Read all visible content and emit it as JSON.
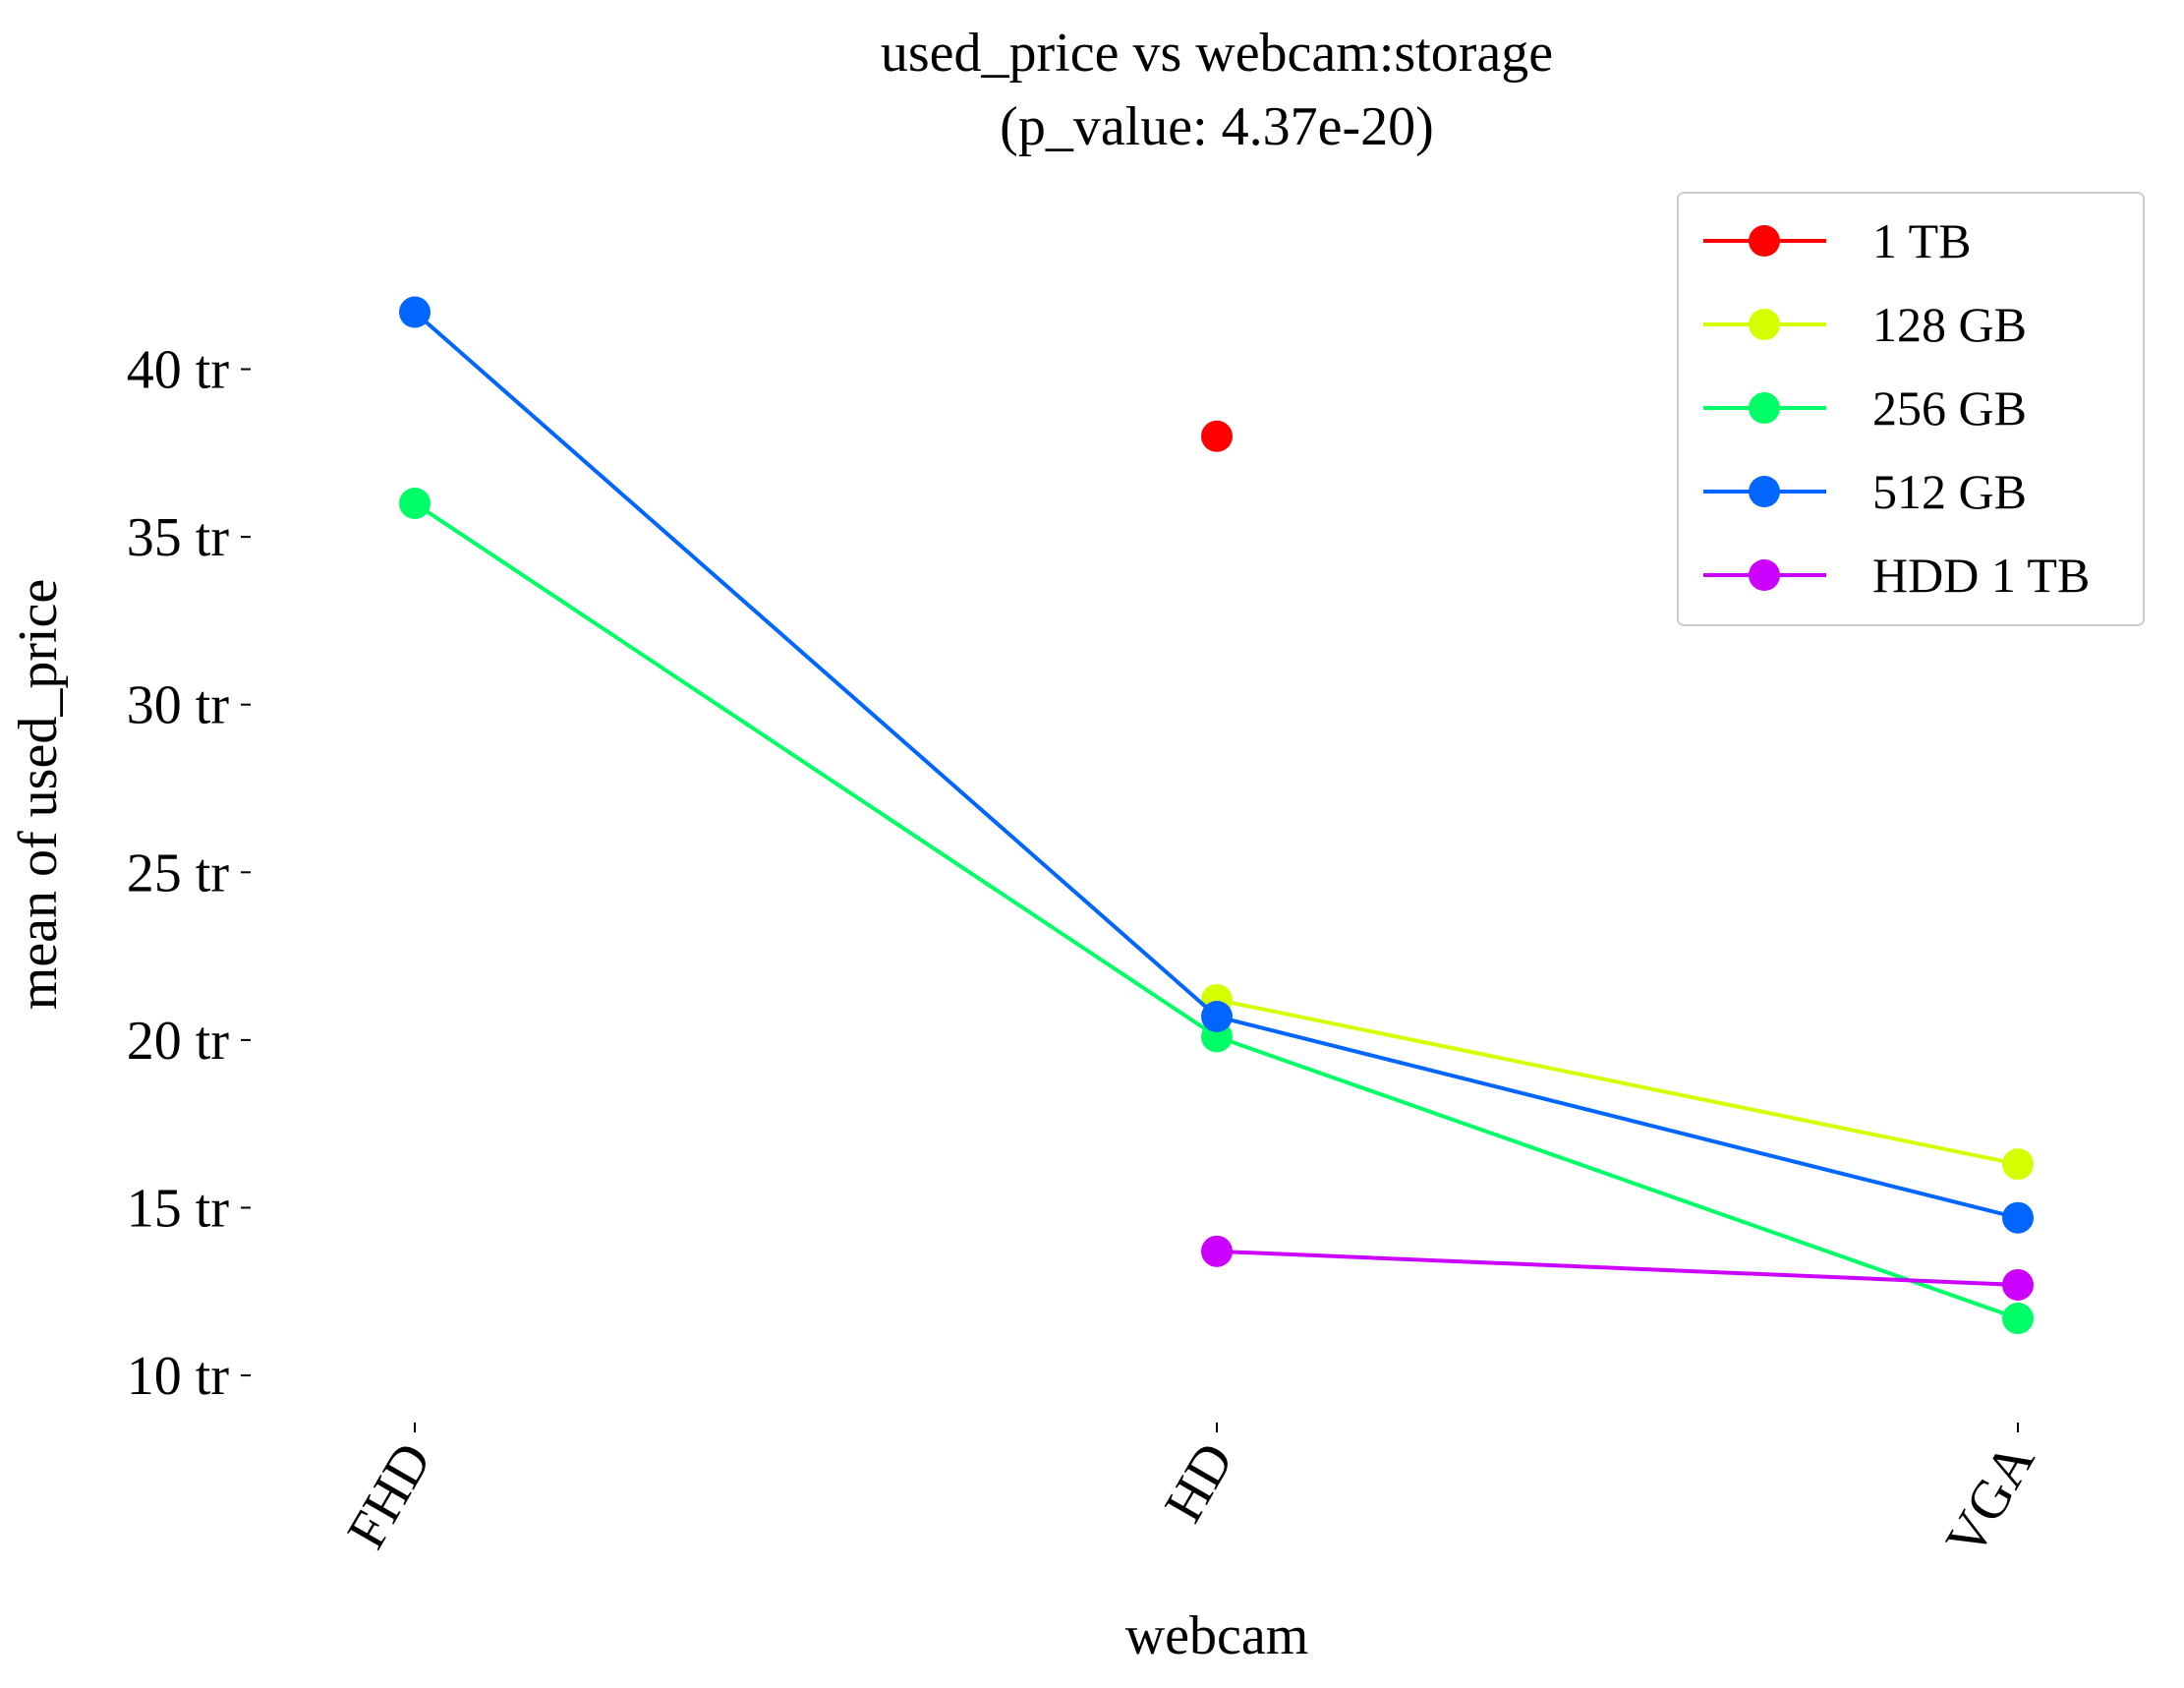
{
  "chart_data": {
    "type": "line",
    "title": "used_price vs webcam:storage",
    "subtitle": "(p_value: 4.37e-20)",
    "xlabel": "webcam",
    "ylabel": "mean of used_price",
    "categories": [
      "FHD",
      "HD",
      "VGA"
    ],
    "y_unit_suffix": " tr",
    "yticks": [
      10,
      15,
      20,
      25,
      30,
      35,
      40
    ],
    "ylim": [
      8.8,
      44.5
    ],
    "grid": false,
    "legend_position": "top-right",
    "series": [
      {
        "name": "1 TB",
        "color": "#ff0000",
        "values": [
          null,
          38.0,
          null
        ]
      },
      {
        "name": "128 GB",
        "color": "#d4ff00",
        "values": [
          null,
          21.2,
          16.3
        ]
      },
      {
        "name": "256 GB",
        "color": "#00ff66",
        "values": [
          36.0,
          20.1,
          11.7
        ]
      },
      {
        "name": "512 GB",
        "color": "#0066ff",
        "values": [
          41.7,
          20.7,
          14.7
        ]
      },
      {
        "name": "HDD 1 TB",
        "color": "#cc00ff",
        "values": [
          null,
          13.7,
          12.7
        ]
      }
    ]
  }
}
